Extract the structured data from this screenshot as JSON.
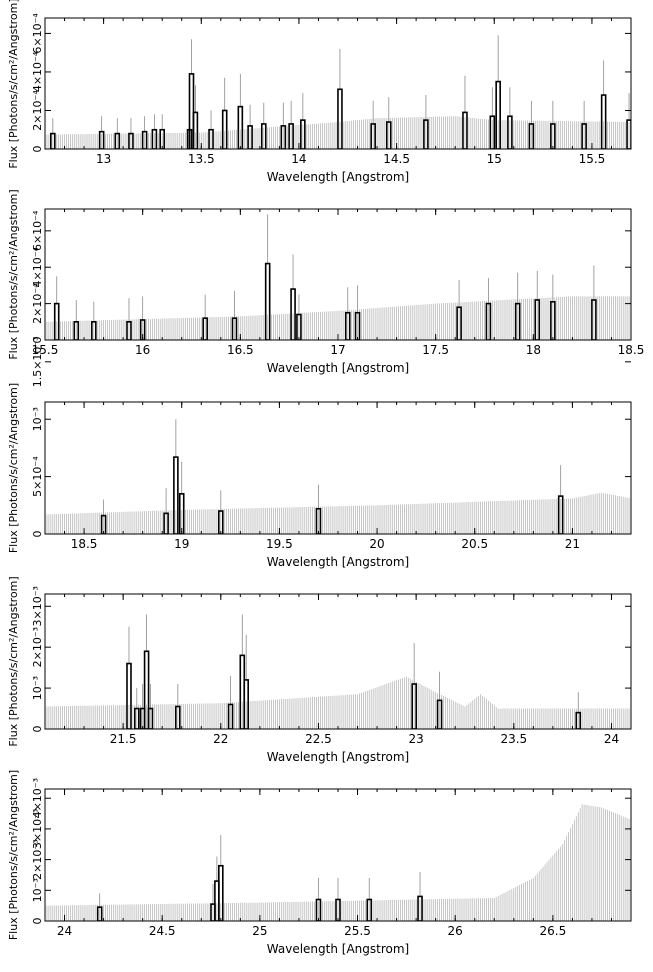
{
  "chart_data": [
    {
      "type": "line",
      "xlabel": "Wavelength [Angstrom]",
      "ylabel": "Flux [Photons/s/cm²/Angstrom]",
      "xlim": [
        12.7,
        15.7
      ],
      "xticks": [
        13,
        13.5,
        14,
        14.5,
        15,
        15.5
      ],
      "ylim": [
        0,
        0.00068
      ],
      "ytick_labels": [
        "0",
        "2×10⁻⁴",
        "4×10⁻⁴",
        "6×10⁻⁴"
      ],
      "ytick_values": [
        0,
        0.0002,
        0.0004,
        0.0006
      ],
      "continuum": [
        [
          12.7,
          7.5e-05
        ],
        [
          13.5,
          8.5e-05
        ],
        [
          14.2,
          0.00014
        ],
        [
          14.4,
          0.00016
        ],
        [
          14.8,
          0.00017
        ],
        [
          15.0,
          0.00015
        ],
        [
          15.7,
          0.00014
        ]
      ],
      "lines": [
        {
          "x": 12.74,
          "y": 8e-05,
          "err": 0.00016
        },
        {
          "x": 12.99,
          "y": 9e-05,
          "err": 0.00017
        },
        {
          "x": 13.07,
          "y": 8e-05,
          "err": 0.00016
        },
        {
          "x": 13.14,
          "y": 8e-05,
          "err": 0.00016
        },
        {
          "x": 13.21,
          "y": 9e-05,
          "err": 0.00017
        },
        {
          "x": 13.26,
          "y": 0.0001,
          "err": 0.00018
        },
        {
          "x": 13.3,
          "y": 0.0001,
          "err": 0.00018
        },
        {
          "x": 13.44,
          "y": 0.0001,
          "err": 0.0002
        },
        {
          "x": 13.45,
          "y": 0.00039,
          "err": 0.00057
        },
        {
          "x": 13.47,
          "y": 0.00019,
          "err": 0.00033
        },
        {
          "x": 13.55,
          "y": 0.0001,
          "err": 0.0002
        },
        {
          "x": 13.62,
          "y": 0.0002,
          "err": 0.00037
        },
        {
          "x": 13.7,
          "y": 0.00022,
          "err": 0.00039
        },
        {
          "x": 13.75,
          "y": 0.00012,
          "err": 0.00023
        },
        {
          "x": 13.82,
          "y": 0.00013,
          "err": 0.00024
        },
        {
          "x": 13.92,
          "y": 0.00012,
          "err": 0.00024
        },
        {
          "x": 13.96,
          "y": 0.00013,
          "err": 0.00025
        },
        {
          "x": 14.02,
          "y": 0.00015,
          "err": 0.00029
        },
        {
          "x": 14.21,
          "y": 0.00031,
          "err": 0.00052
        },
        {
          "x": 14.38,
          "y": 0.00013,
          "err": 0.00025
        },
        {
          "x": 14.46,
          "y": 0.00014,
          "err": 0.00027
        },
        {
          "x": 14.65,
          "y": 0.00015,
          "err": 0.00028
        },
        {
          "x": 14.85,
          "y": 0.00019,
          "err": 0.00038
        },
        {
          "x": 14.99,
          "y": 0.00017,
          "err": 0.00032
        },
        {
          "x": 15.02,
          "y": 0.00035,
          "err": 0.00059
        },
        {
          "x": 15.08,
          "y": 0.00017,
          "err": 0.00032
        },
        {
          "x": 15.19,
          "y": 0.00013,
          "err": 0.00025
        },
        {
          "x": 15.3,
          "y": 0.00013,
          "err": 0.00025
        },
        {
          "x": 15.46,
          "y": 0.00013,
          "err": 0.00025
        },
        {
          "x": 15.56,
          "y": 0.00028,
          "err": 0.00046
        },
        {
          "x": 15.69,
          "y": 0.00015,
          "err": 0.00029
        }
      ]
    },
    {
      "type": "line",
      "xlabel": "Wavelength [Angstrom]",
      "ylabel": "Flux [Photons/s/cm²/Angstrom]",
      "xlim": [
        15.5,
        18.5
      ],
      "xticks": [
        15.5,
        16,
        16.5,
        17,
        17.5,
        18,
        18.5
      ],
      "ylim": [
        0,
        0.00072
      ],
      "ytick_labels": [
        "0",
        "2×10⁻⁴",
        "4×10⁻⁴",
        "6×10⁻⁴"
      ],
      "ytick_values": [
        0,
        0.0002,
        0.0004,
        0.0006
      ],
      "continuum": [
        [
          15.5,
          0.0001
        ],
        [
          16.5,
          0.00013
        ],
        [
          17.0,
          0.00016
        ],
        [
          17.5,
          0.0002
        ],
        [
          18.2,
          0.00024
        ],
        [
          18.5,
          0.00024
        ]
      ],
      "lines": [
        {
          "x": 15.56,
          "y": 0.0002,
          "err": 0.00035
        },
        {
          "x": 15.66,
          "y": 0.0001,
          "err": 0.00022
        },
        {
          "x": 15.75,
          "y": 0.0001,
          "err": 0.00021
        },
        {
          "x": 15.93,
          "y": 0.0001,
          "err": 0.00023
        },
        {
          "x": 16.0,
          "y": 0.00011,
          "err": 0.00024
        },
        {
          "x": 16.32,
          "y": 0.00012,
          "err": 0.00025
        },
        {
          "x": 16.47,
          "y": 0.00012,
          "err": 0.00027
        },
        {
          "x": 16.64,
          "y": 0.00042,
          "err": 0.00069
        },
        {
          "x": 16.77,
          "y": 0.00028,
          "err": 0.00047
        },
        {
          "x": 16.8,
          "y": 0.00014,
          "err": 0.00025
        },
        {
          "x": 17.05,
          "y": 0.00015,
          "err": 0.00029
        },
        {
          "x": 17.1,
          "y": 0.00015,
          "err": 0.0003
        },
        {
          "x": 17.62,
          "y": 0.00018,
          "err": 0.00033
        },
        {
          "x": 17.77,
          "y": 0.0002,
          "err": 0.00034
        },
        {
          "x": 17.92,
          "y": 0.0002,
          "err": 0.00037
        },
        {
          "x": 18.02,
          "y": 0.00022,
          "err": 0.00038
        },
        {
          "x": 18.1,
          "y": 0.00021,
          "err": 0.00036
        },
        {
          "x": 18.31,
          "y": 0.00022,
          "err": 0.00041
        }
      ]
    },
    {
      "type": "line",
      "xlabel": "Wavelength [Angstrom]",
      "ylabel": "Flux [Photons/s/cm²/Angstrom]",
      "xlim": [
        18.3,
        21.3
      ],
      "xticks": [
        18.5,
        19,
        19.5,
        20,
        20.5,
        21
      ],
      "ylim": [
        0,
        0.00115
      ],
      "ytick_labels": [
        "0",
        "5×10⁻⁴",
        "10⁻³",
        "1.5×10⁻³"
      ],
      "ytick_values": [
        0,
        0.0005,
        0.001,
        0.0015
      ],
      "continuum": [
        [
          18.3,
          0.00017
        ],
        [
          19.0,
          0.00021
        ],
        [
          20.0,
          0.00025
        ],
        [
          20.5,
          0.00028
        ],
        [
          21.0,
          0.00031
        ],
        [
          21.15,
          0.00036
        ],
        [
          21.3,
          0.00031
        ]
      ],
      "lines": [
        {
          "x": 18.6,
          "y": 0.00016,
          "err": 0.0003
        },
        {
          "x": 18.92,
          "y": 0.00018,
          "err": 0.0004
        },
        {
          "x": 18.97,
          "y": 0.00067,
          "err": 0.001
        },
        {
          "x": 19.0,
          "y": 0.00035,
          "err": 0.00063
        },
        {
          "x": 19.2,
          "y": 0.0002,
          "err": 0.00038
        },
        {
          "x": 19.7,
          "y": 0.00022,
          "err": 0.00043
        },
        {
          "x": 20.94,
          "y": 0.00033,
          "err": 0.0006
        }
      ]
    },
    {
      "type": "line",
      "xlabel": "Wavelength [Angstrom]",
      "ylabel": "Flux [Photons/s/cm²/Angstrom]",
      "xlim": [
        21.1,
        24.1
      ],
      "xticks": [
        21.5,
        22,
        22.5,
        23,
        23.5,
        24
      ],
      "ylim": [
        0,
        0.0033
      ],
      "ytick_labels": [
        "0",
        "10⁻³",
        "2×10⁻³",
        "3×10⁻³"
      ],
      "ytick_values": [
        0,
        0.001,
        0.002,
        0.003
      ],
      "continuum": [
        [
          21.1,
          0.00055
        ],
        [
          22.0,
          0.00063
        ],
        [
          22.7,
          0.00085
        ],
        [
          22.95,
          0.00128
        ],
        [
          23.1,
          0.0009
        ],
        [
          23.25,
          0.00055
        ],
        [
          23.33,
          0.00085
        ],
        [
          23.42,
          0.0005
        ],
        [
          24.1,
          0.0005
        ]
      ],
      "lines": [
        {
          "x": 21.53,
          "y": 0.0016,
          "err": 0.0025
        },
        {
          "x": 21.57,
          "y": 0.0005,
          "err": 0.001
        },
        {
          "x": 21.6,
          "y": 0.0005,
          "err": 0.0011
        },
        {
          "x": 21.62,
          "y": 0.0019,
          "err": 0.0028
        },
        {
          "x": 21.64,
          "y": 0.0005,
          "err": 0.0011
        },
        {
          "x": 21.78,
          "y": 0.00055,
          "err": 0.0011
        },
        {
          "x": 22.05,
          "y": 0.0006,
          "err": 0.0013
        },
        {
          "x": 22.11,
          "y": 0.0018,
          "err": 0.0028
        },
        {
          "x": 22.13,
          "y": 0.0012,
          "err": 0.0023
        },
        {
          "x": 22.99,
          "y": 0.0011,
          "err": 0.0021
        },
        {
          "x": 23.12,
          "y": 0.0007,
          "err": 0.0014
        },
        {
          "x": 23.83,
          "y": 0.0004,
          "err": 0.0009
        }
      ]
    },
    {
      "type": "line",
      "xlabel": "Wavelength [Angstrom]",
      "ylabel": "Flux [Photons/s/cm²/Angstrom]",
      "xlim": [
        23.9,
        26.9
      ],
      "xticks": [
        24,
        24.5,
        25,
        25.5,
        26,
        26.5
      ],
      "ylim": [
        0,
        0.0043
      ],
      "ytick_labels": [
        "0",
        "10⁻³",
        "2×10⁻³",
        "3×10⁻³",
        "4×10⁻³"
      ],
      "ytick_values": [
        0,
        0.001,
        0.002,
        0.003,
        0.004
      ],
      "continuum": [
        [
          23.9,
          0.0005
        ],
        [
          25.0,
          0.0006
        ],
        [
          26.2,
          0.00075
        ],
        [
          26.4,
          0.0014
        ],
        [
          26.55,
          0.0025
        ],
        [
          26.65,
          0.0038
        ],
        [
          26.75,
          0.0037
        ],
        [
          26.9,
          0.0033
        ]
      ],
      "lines": [
        {
          "x": 24.18,
          "y": 0.00045,
          "err": 0.0009
        },
        {
          "x": 24.76,
          "y": 0.00055,
          "err": 0.0012
        },
        {
          "x": 24.78,
          "y": 0.0013,
          "err": 0.0021
        },
        {
          "x": 24.8,
          "y": 0.0018,
          "err": 0.0028
        },
        {
          "x": 25.3,
          "y": 0.0007,
          "err": 0.0014
        },
        {
          "x": 25.4,
          "y": 0.0007,
          "err": 0.0014
        },
        {
          "x": 25.56,
          "y": 0.0007,
          "err": 0.0014
        },
        {
          "x": 25.82,
          "y": 0.0008,
          "err": 0.0016
        }
      ]
    }
  ]
}
